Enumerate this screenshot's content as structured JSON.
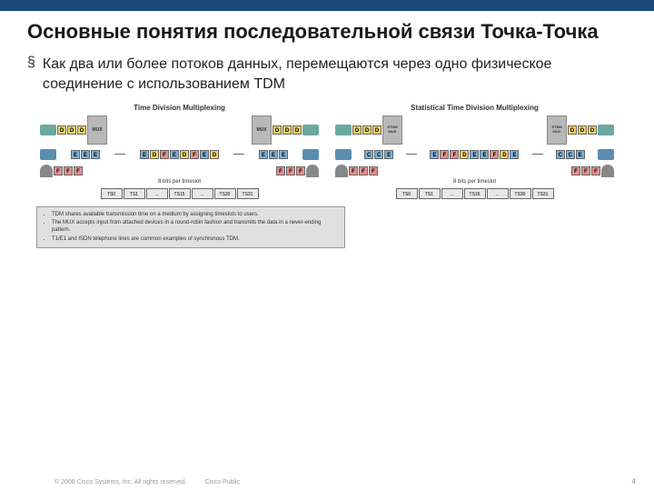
{
  "colors": {
    "topbar": "#1a4a7a",
    "cell_d": "#f5d060",
    "cell_e": "#7bb0d8",
    "cell_f": "#e89090",
    "mux_box": "#b8b8b8",
    "ts_box": "#e8e8e8",
    "router": "#6ba8a0",
    "switch": "#5b8db0"
  },
  "title": "Основные понятия последовательной связи Точка-Точка",
  "bullet": "Как два или более потоков данных, перемещаются через одно физическое соединение с использованием TDM",
  "bullet_mark": "§",
  "diag_left": {
    "title": "Time Division Multiplexing",
    "mux": "MUX",
    "cells_d": [
      "D",
      "D",
      "D"
    ],
    "cells_e": [
      "E",
      "E",
      "E"
    ],
    "cells_f": [
      "F",
      "F",
      "F"
    ],
    "mid": [
      "E",
      "D",
      "F",
      "E",
      "D",
      "F",
      "E",
      "D"
    ],
    "caption": "8 bits per timeslot",
    "ts": [
      "TS0",
      "TS1",
      "...",
      "TS15",
      "...",
      "TS30",
      "TS31"
    ]
  },
  "diag_right": {
    "title": "Statistical Time Division Multiplexing",
    "mux": "STDM MUX",
    "cells_d": [
      "D",
      "D",
      "D"
    ],
    "cells_e": [
      "C",
      "C",
      "E"
    ],
    "cells_f": [
      "F",
      "F",
      "F"
    ],
    "mid": [
      "E",
      "F",
      "F",
      "D",
      "E",
      "E",
      "F",
      "D",
      "E"
    ],
    "caption": "8 bits per timeslot",
    "ts": [
      "TS0",
      "TS1",
      "...",
      "TS15",
      "...",
      "TS30",
      "TS31"
    ]
  },
  "infobox": [
    "TDM shares available transmission time on a medium by assigning timeslots to users.",
    "The MUX accepts input from attached devices in a round-robin fashion and transmits the data in a never-ending pattern.",
    "T1/E1 and ISDN telephone lines are common examples of synchronous TDM."
  ],
  "footer_copyright": "© 2006 Cisco Systems, Inc. All rights reserved.",
  "footer_label": "Cisco Public",
  "pagenum": "4"
}
